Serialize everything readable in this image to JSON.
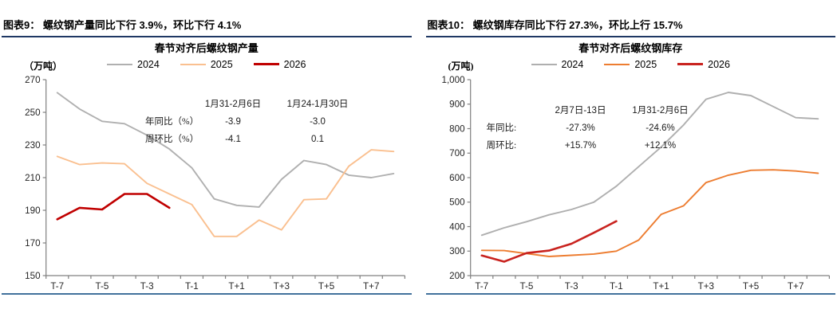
{
  "colors": {
    "header_rule": "#1f3864",
    "bottom_rule": "#41719c",
    "axis": "#808080",
    "tick_text": "#262626"
  },
  "chart_data": [
    {
      "type": "line",
      "header": "图表9：  螺纹钢产量同比下行 3.9%，环比下行 4.1%",
      "title": "春节对齐后螺纹钢产量",
      "unit_label": "（万吨）",
      "categories": [
        "T-7",
        "T-6",
        "T-5",
        "T-4",
        "T-3",
        "T-2",
        "T-1",
        "T",
        "T+1",
        "T+2",
        "T+3",
        "T+4",
        "T+5",
        "T+6",
        "T+7",
        "T+8"
      ],
      "x_tick_labels": [
        "T-7",
        "T-5",
        "T-3",
        "T-1",
        "T+1",
        "T+3",
        "T+5",
        "T+7"
      ],
      "ylim": [
        150,
        270
      ],
      "yticks": [
        150,
        170,
        190,
        210,
        230,
        250,
        270
      ],
      "ytick_labels": [
        "150",
        "170",
        "190",
        "210",
        "230",
        "250",
        "270"
      ],
      "grid": false,
      "legend_position": "top",
      "series": [
        {
          "name": "2024",
          "color": "#b0b0b0",
          "values": [
            262,
            252,
            244.5,
            243,
            236,
            227.5,
            216,
            197,
            193,
            192,
            209,
            220.5,
            218,
            211.5,
            210,
            212.5
          ]
        },
        {
          "name": "2025",
          "color": "#fac090",
          "values": [
            223,
            218,
            219,
            218.5,
            206.5,
            200,
            193.5,
            174,
            174,
            184,
            178,
            196.5,
            197,
            217,
            227,
            226
          ]
        },
        {
          "name": "2026",
          "color": "#c00000",
          "values": [
            184.5,
            191.5,
            190.5,
            200,
            200,
            191.5,
            null,
            null,
            null,
            null,
            null,
            null,
            null,
            null,
            null,
            null
          ]
        }
      ],
      "annotation": {
        "col_headers": [
          "1月31-2月6日",
          "1月24-1月30日"
        ],
        "rows": [
          {
            "label": "年同比（%）",
            "values": [
              "-3.9",
              "-3.0"
            ]
          },
          {
            "label": "周环比（%）",
            "values": [
              "-4.1",
              "0.1"
            ]
          }
        ]
      }
    },
    {
      "type": "line",
      "header": "图表10：  螺纹钢库存同比下行 27.3%，环比上行 15.7%",
      "title": "春节对齐后螺纹钢库存",
      "unit_label": "(万吨)",
      "categories": [
        "T-7",
        "T-6",
        "T-5",
        "T-4",
        "T-3",
        "T-2",
        "T-1",
        "T",
        "T+1",
        "T+2",
        "T+3",
        "T+4",
        "T+5",
        "T+6",
        "T+7",
        "T+8"
      ],
      "x_tick_labels": [
        "T-7",
        "T-5",
        "T-3",
        "T-1",
        "T+1",
        "T+3",
        "T+5",
        "T+7"
      ],
      "ylim": [
        200,
        1000
      ],
      "yticks": [
        200,
        300,
        400,
        500,
        600,
        700,
        800,
        900,
        1000
      ],
      "ytick_labels": [
        "200",
        "300",
        "400",
        "500",
        "600",
        "700",
        "800",
        "900",
        "1,000"
      ],
      "grid": false,
      "legend_position": "top",
      "series": [
        {
          "name": "2024",
          "color": "#afafaf",
          "values": [
            365,
            395,
            420,
            448,
            470,
            500,
            565,
            645,
            725,
            815,
            920,
            948,
            935,
            890,
            845,
            840
          ]
        },
        {
          "name": "2025",
          "color": "#ed7d31",
          "values": [
            303,
            302,
            290,
            278,
            283,
            288,
            300,
            345,
            450,
            485,
            580,
            610,
            630,
            632,
            627,
            618
          ]
        },
        {
          "name": "2026",
          "color": "#c9231f",
          "values": [
            282,
            257,
            292,
            302,
            330,
            375,
            422,
            null,
            null,
            null,
            null,
            null,
            null,
            null,
            null,
            null
          ]
        }
      ],
      "annotation": {
        "col_headers": [
          "2月7日-13日",
          "1月31-2月6日"
        ],
        "rows": [
          {
            "label": "年同比:",
            "values": [
              "-27.3%",
              "-24.6%"
            ]
          },
          {
            "label": "周环比:",
            "values": [
              "+15.7%",
              "+12.1%"
            ]
          }
        ]
      }
    }
  ]
}
